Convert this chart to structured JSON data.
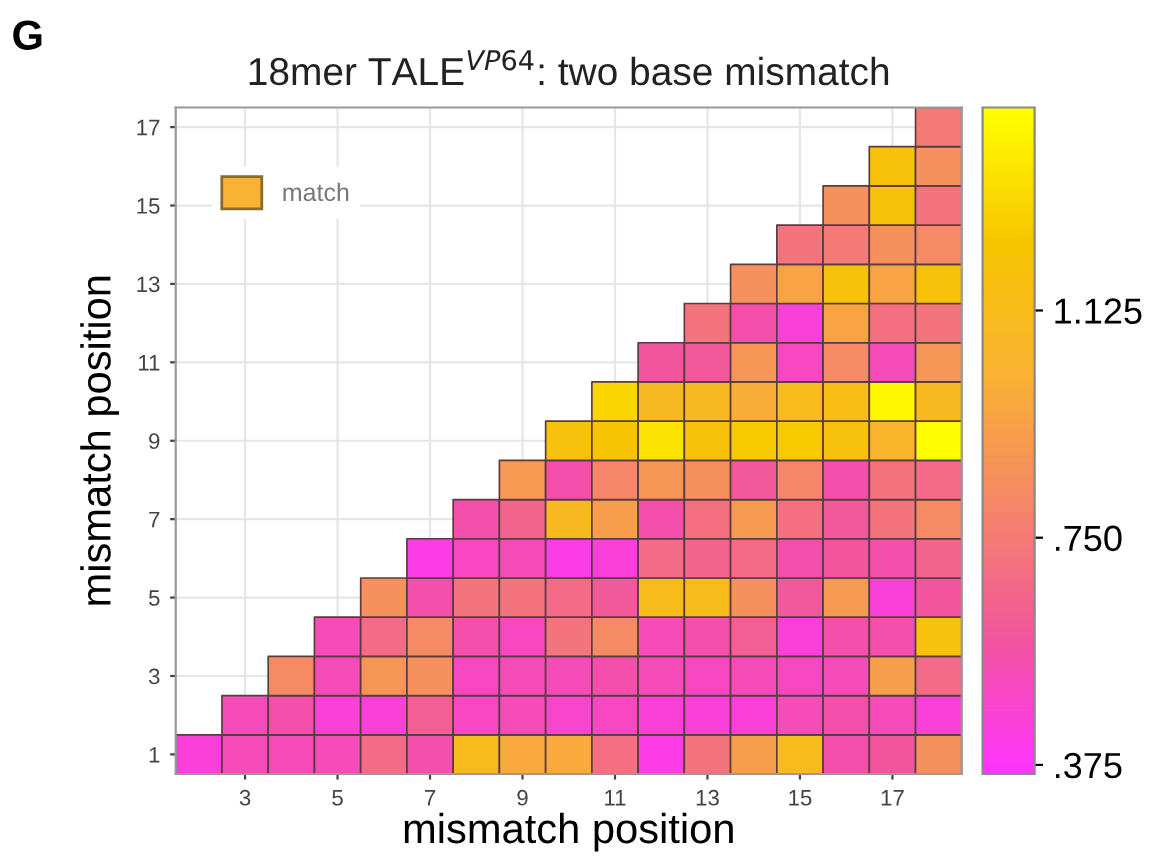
{
  "chart_data": {
    "type": "heatmap",
    "title": "18mer TALE$^{VP64}$: two base mismatch",
    "xlabel": "mismatch position",
    "ylabel": "mismatch position",
    "annotations": [
      "G"
    ],
    "categories": [
      null,
      "3",
      null,
      "5",
      null,
      "7",
      null,
      "9",
      null,
      "11",
      null,
      "13",
      null,
      "15",
      null,
      "17",
      null
    ],
    "y_categories": [
      "17",
      null,
      "15",
      null,
      "13",
      null,
      "11",
      null,
      "9",
      null,
      "7",
      null,
      "5",
      null,
      "3",
      null,
      "1"
    ],
    "cells": [
      [
        null,
        null,
        null,
        null,
        null,
        null,
        null,
        null,
        null,
        null,
        null,
        null,
        null,
        null,
        null,
        null,
        0.75
      ],
      [
        null,
        null,
        null,
        null,
        null,
        null,
        null,
        null,
        null,
        null,
        null,
        null,
        null,
        null,
        null,
        1.2,
        0.85
      ],
      [
        null,
        null,
        null,
        null,
        null,
        null,
        null,
        null,
        null,
        null,
        null,
        null,
        null,
        null,
        0.85,
        1.2,
        0.72
      ],
      [
        null,
        null,
        null,
        null,
        null,
        null,
        null,
        null,
        null,
        null,
        null,
        null,
        null,
        0.72,
        0.75,
        0.85,
        0.82
      ],
      [
        null,
        null,
        null,
        null,
        null,
        null,
        null,
        null,
        null,
        null,
        null,
        null,
        0.85,
        0.95,
        1.2,
        0.95,
        1.2
      ],
      [
        null,
        null,
        null,
        null,
        null,
        null,
        null,
        null,
        null,
        null,
        null,
        0.72,
        0.55,
        0.45,
        0.95,
        0.7,
        0.72
      ],
      [
        null,
        null,
        null,
        null,
        null,
        null,
        null,
        null,
        null,
        null,
        0.58,
        0.6,
        0.88,
        0.5,
        0.82,
        0.52,
        0.88
      ],
      [
        null,
        null,
        null,
        null,
        null,
        null,
        null,
        null,
        null,
        1.3,
        1.1,
        1.1,
        1.0,
        1.12,
        1.15,
        1.42,
        1.1
      ],
      [
        null,
        null,
        null,
        null,
        null,
        null,
        null,
        null,
        1.18,
        1.22,
        1.35,
        1.2,
        1.25,
        1.25,
        1.18,
        1.05,
        1.45
      ],
      [
        null,
        null,
        null,
        null,
        null,
        null,
        null,
        0.9,
        0.55,
        0.8,
        0.88,
        0.85,
        0.6,
        0.8,
        0.55,
        0.72,
        0.68
      ],
      [
        null,
        null,
        null,
        null,
        null,
        null,
        0.55,
        0.65,
        1.1,
        0.92,
        0.55,
        0.7,
        0.9,
        0.7,
        0.6,
        0.72,
        0.82
      ],
      [
        null,
        null,
        null,
        null,
        null,
        0.42,
        0.5,
        0.52,
        0.42,
        0.45,
        0.68,
        0.65,
        0.68,
        0.55,
        0.58,
        0.55,
        0.65
      ],
      [
        null,
        null,
        null,
        null,
        0.85,
        0.55,
        0.72,
        0.72,
        0.68,
        0.6,
        1.12,
        1.12,
        0.85,
        0.6,
        0.9,
        0.45,
        0.58
      ],
      [
        null,
        null,
        null,
        0.52,
        0.68,
        0.82,
        0.55,
        0.5,
        0.72,
        0.82,
        0.52,
        0.55,
        0.62,
        0.45,
        0.55,
        0.55,
        1.18
      ],
      [
        null,
        null,
        0.82,
        0.52,
        0.88,
        0.85,
        0.5,
        0.52,
        0.52,
        0.55,
        0.52,
        0.5,
        0.52,
        0.5,
        0.52,
        0.92,
        0.68
      ],
      [
        null,
        0.52,
        0.55,
        0.45,
        0.45,
        0.62,
        0.5,
        0.52,
        0.48,
        0.5,
        0.45,
        0.45,
        0.45,
        0.52,
        0.55,
        0.52,
        0.45
      ],
      [
        0.45,
        0.52,
        0.52,
        0.52,
        0.68,
        0.55,
        1.12,
        0.98,
        0.98,
        0.7,
        0.42,
        0.72,
        0.92,
        1.12,
        0.55,
        0.58,
        0.85
      ]
    ],
    "colors": [
      "#ff33ff",
      "#f2559e",
      "#f5866a",
      "#f9b233",
      "#f7c600",
      "#ffff00"
    ],
    "clim": [
      0.36,
      1.46
    ],
    "cticks": [
      {
        "value": 0.375,
        "label": ".375"
      },
      {
        "value": 0.75,
        "label": ".750"
      },
      {
        "value": 1.125,
        "label": "1.125"
      }
    ],
    "series": [
      {
        "name": "match",
        "color": "#f9b233",
        "values": [
          null,
          null,
          null,
          null,
          null,
          null,
          null,
          null,
          null,
          null,
          null,
          null,
          null,
          null,
          null,
          null,
          null
        ]
      }
    ],
    "legend": "top left",
    "grid": true
  }
}
